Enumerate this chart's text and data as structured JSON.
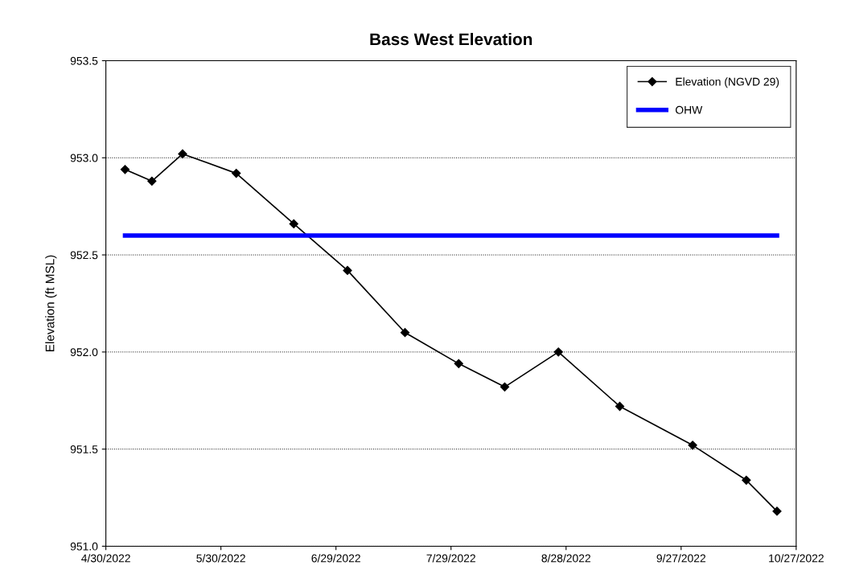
{
  "chart_data": {
    "type": "line",
    "title": "Bass West Elevation",
    "ylabel": "Elevation (ft MSL)",
    "series": [
      {
        "name": "Elevation (NGVD 29)",
        "color": "#000000",
        "marker": "diamond",
        "x": [
          "2022-05-05",
          "2022-05-12",
          "2022-05-20",
          "2022-06-03",
          "2022-06-18",
          "2022-07-02",
          "2022-07-17",
          "2022-07-31",
          "2022-08-12",
          "2022-08-26",
          "2022-09-11",
          "2022-09-30",
          "2022-10-14",
          "2022-10-22"
        ],
        "values": [
          952.94,
          952.88,
          953.02,
          952.92,
          952.66,
          952.42,
          952.1,
          951.94,
          951.82,
          952.0,
          951.72,
          951.52,
          951.34,
          951.18
        ]
      },
      {
        "name": "OHW",
        "color": "#0000ff",
        "marker": "none",
        "x": [
          "2022-05-05",
          "2022-10-22"
        ],
        "values": [
          952.6,
          952.6
        ]
      }
    ],
    "xlim": [
      "2022-04-30",
      "2022-10-27"
    ],
    "xticks": [
      {
        "value": "2022-04-30",
        "label": "4/30/2022"
      },
      {
        "value": "2022-05-30",
        "label": "5/30/2022"
      },
      {
        "value": "2022-06-29",
        "label": "6/29/2022"
      },
      {
        "value": "2022-07-29",
        "label": "7/29/2022"
      },
      {
        "value": "2022-08-28",
        "label": "8/28/2022"
      },
      {
        "value": "2022-09-27",
        "label": "9/27/2022"
      },
      {
        "value": "2022-10-27",
        "label": "10/27/2022"
      }
    ],
    "ylim": [
      951.0,
      953.5
    ],
    "yticks": [
      {
        "value": 951,
        "label": "951.0"
      },
      951.5,
      {
        "value": 952,
        "label": "952.0"
      },
      952.5,
      {
        "value": 953,
        "label": "953.0"
      },
      953.5
    ],
    "grid": "y",
    "legend": "top right"
  }
}
